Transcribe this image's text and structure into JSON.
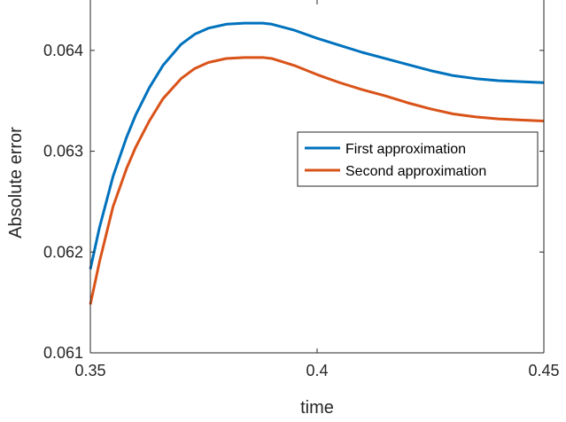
{
  "chart_data": {
    "type": "line",
    "title": "",
    "xlabel": "time",
    "ylabel": "Absolute error",
    "xlim": [
      0.35,
      0.45
    ],
    "ylim": [
      0.061,
      0.0645
    ],
    "xticks": [
      0.35,
      0.4,
      0.45
    ],
    "xtick_labels": [
      "0.35",
      "0.4",
      "0.45"
    ],
    "yticks": [
      0.061,
      0.062,
      0.063,
      0.064
    ],
    "ytick_labels": [
      "0.061",
      "0.062",
      "0.063",
      "0.064"
    ],
    "grid": false,
    "legend_position": "center-right",
    "series": [
      {
        "name": "First approximation",
        "color": "#0072bd",
        "x": [
          0.35,
          0.352,
          0.355,
          0.358,
          0.36,
          0.363,
          0.366,
          0.37,
          0.373,
          0.376,
          0.38,
          0.384,
          0.388,
          0.39,
          0.395,
          0.4,
          0.405,
          0.41,
          0.415,
          0.42,
          0.425,
          0.43,
          0.435,
          0.44,
          0.445,
          0.45
        ],
        "y": [
          0.06183,
          0.06224,
          0.06275,
          0.06314,
          0.06336,
          0.06363,
          0.06385,
          0.06406,
          0.06416,
          0.06422,
          0.06426,
          0.06427,
          0.06427,
          0.06426,
          0.0642,
          0.06412,
          0.06405,
          0.06398,
          0.06392,
          0.06386,
          0.0638,
          0.06375,
          0.06372,
          0.0637,
          0.06369,
          0.06368
        ]
      },
      {
        "name": "Second approximation",
        "color": "#d95319",
        "x": [
          0.35,
          0.352,
          0.355,
          0.358,
          0.36,
          0.363,
          0.366,
          0.37,
          0.373,
          0.376,
          0.38,
          0.384,
          0.388,
          0.39,
          0.395,
          0.4,
          0.405,
          0.41,
          0.415,
          0.42,
          0.425,
          0.43,
          0.435,
          0.44,
          0.445,
          0.45
        ],
        "y": [
          0.06148,
          0.0619,
          0.06245,
          0.06283,
          0.06304,
          0.0633,
          0.06352,
          0.06372,
          0.06382,
          0.06388,
          0.06392,
          0.06393,
          0.06393,
          0.06392,
          0.06385,
          0.06376,
          0.06368,
          0.06361,
          0.06355,
          0.06348,
          0.06342,
          0.06337,
          0.06334,
          0.06332,
          0.06331,
          0.0633
        ]
      }
    ]
  }
}
